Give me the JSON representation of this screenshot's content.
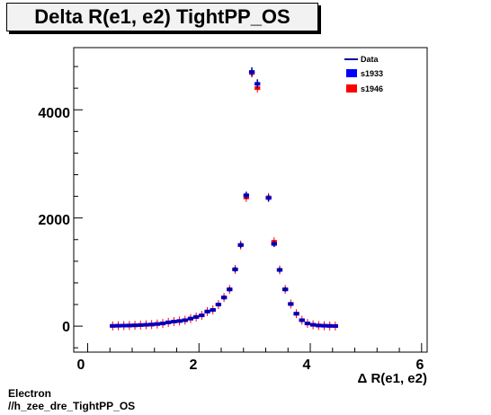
{
  "chart_data": {
    "type": "scatter",
    "title": "Delta R(e1, e2) TightPP_OS",
    "xlabel": "Δ R(e1, e2)",
    "ylabel": "",
    "xlim": [
      -0.25,
      6.1
    ],
    "ylim": [
      -480,
      5150
    ],
    "xticks": [
      0,
      2,
      4,
      6
    ],
    "yticks": [
      0,
      2000,
      4000
    ],
    "bin_width": 0.1,
    "grid": false,
    "legend_position": "top-right",
    "x": [
      0.45,
      0.55,
      0.65,
      0.75,
      0.85,
      0.95,
      1.05,
      1.15,
      1.25,
      1.35,
      1.45,
      1.55,
      1.65,
      1.75,
      1.85,
      1.95,
      2.05,
      2.15,
      2.25,
      2.35,
      2.45,
      2.55,
      2.65,
      2.75,
      2.85,
      2.95,
      3.05,
      3.15,
      3.25,
      3.35,
      3.45,
      3.55,
      3.65,
      3.75,
      3.85,
      3.95,
      4.05,
      4.15,
      4.25,
      4.35,
      4.45
    ],
    "series": [
      {
        "name": "Data",
        "color": "#000099",
        "values": [
          5,
          8,
          10,
          12,
          15,
          20,
          25,
          30,
          40,
          50,
          70,
          85,
          95,
          110,
          140,
          170,
          200,
          270,
          300,
          400,
          530,
          680,
          1050,
          1500,
          2420,
          4700,
          4480,
          0,
          2370,
          1520,
          1040,
          680,
          410,
          230,
          110,
          50,
          25,
          12,
          8,
          5,
          3
        ]
      },
      {
        "name": "s1933",
        "color": "#0000ff",
        "values": [
          5,
          8,
          10,
          12,
          15,
          20,
          25,
          30,
          40,
          50,
          70,
          85,
          95,
          110,
          140,
          170,
          200,
          270,
          300,
          400,
          530,
          680,
          1050,
          1500,
          2420,
          4700,
          4480,
          0,
          2370,
          1520,
          1040,
          680,
          410,
          230,
          110,
          50,
          25,
          12,
          8,
          5,
          3
        ]
      },
      {
        "name": "s1946",
        "color": "#ff0000",
        "values": [
          5,
          8,
          10,
          12,
          15,
          20,
          25,
          30,
          40,
          50,
          70,
          85,
          95,
          110,
          140,
          170,
          200,
          270,
          300,
          400,
          530,
          680,
          1050,
          1500,
          2380,
          4680,
          4400,
          0,
          2380,
          1560,
          1040,
          680,
          410,
          230,
          110,
          50,
          25,
          12,
          8,
          5,
          3
        ]
      }
    ]
  },
  "footer": {
    "line1": "Electron",
    "line2": "//h_zee_dre_TightPP_OS"
  }
}
